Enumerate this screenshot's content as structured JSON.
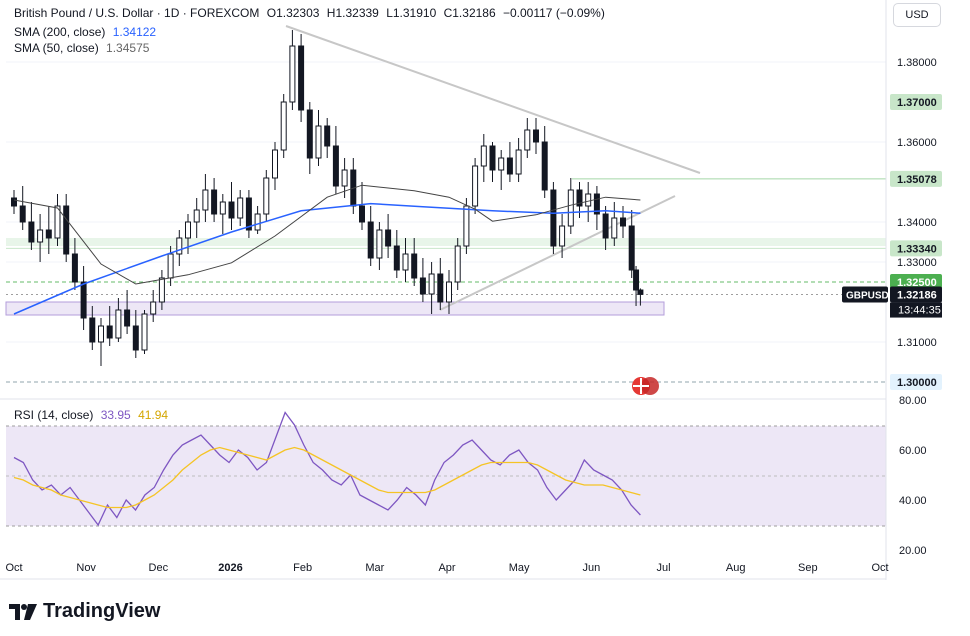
{
  "header": {
    "title": "British Pound / U.S. Dollar · 1D · FOREXCOM",
    "open": "O1.32303",
    "high": "H1.32339",
    "low": "L1.31910",
    "close": "C1.32186",
    "change": "−0.00117 (−0.09%)",
    "currency_button": "USD"
  },
  "legend": {
    "sma200_label": "SMA (200, close)",
    "sma200_value": "1.34122",
    "sma50_label": "SMA (50, close)",
    "sma50_value": "1.34575",
    "rsi_label": "RSI (14, close)",
    "rsi_value": "33.95",
    "rsi_ma_value": "41.94"
  },
  "brand": {
    "name": "TradingView"
  },
  "colors": {
    "sma200": "#2962ff",
    "sma50": "#444444",
    "rsi": "#7e57c2",
    "rsi_ma": "#f5c425",
    "level_green": "#a5d6a7",
    "support_zone": "#b39ddb",
    "trendline": "#c7c7c7"
  },
  "chart_data": [
    {
      "type": "candlestick",
      "title": "British Pound / U.S. Dollar · 1D · FOREXCOM",
      "x_ticks": [
        "Oct",
        "Nov",
        "Dec",
        "2026",
        "Feb",
        "Mar",
        "Apr",
        "May",
        "Jun",
        "Jul",
        "Aug",
        "Sep",
        "Oct"
      ],
      "y_ticks": [
        "1.38000",
        "1.36000",
        "1.34000",
        "1.33000",
        "1.31000"
      ],
      "ylim": [
        1.2975,
        1.3905
      ],
      "price_levels": [
        {
          "label": "1.37000",
          "value": 1.37,
          "style": "green-badge"
        },
        {
          "label": "1.35078",
          "value": 1.35078,
          "style": "green-line"
        },
        {
          "label": "1.33340",
          "value": 1.3334,
          "style": "green-zone"
        },
        {
          "label": "1.32500",
          "value": 1.325,
          "style": "green-dashed"
        },
        {
          "label": "1.32186",
          "value": 1.32186,
          "style": "current"
        },
        {
          "label": "1.30000",
          "value": 1.3,
          "style": "blue-dashed"
        }
      ],
      "current": {
        "symbol": "GBPUSD",
        "price": "1.32186",
        "countdown": "13:44:35"
      },
      "support_zone": [
        1.3164,
        1.3195
      ],
      "series": [
        {
          "name": "SMA (200, close)",
          "points": [
            [
              0,
              1.317
            ],
            [
              0.08,
              1.3245
            ],
            [
              0.17,
              1.3315
            ],
            [
              0.25,
              1.3375
            ],
            [
              0.33,
              1.3428
            ],
            [
              0.41,
              1.3446
            ],
            [
              0.47,
              1.3438
            ],
            [
              0.55,
              1.3428
            ],
            [
              0.62,
              1.3422
            ],
            [
              0.68,
              1.3428
            ],
            [
              0.72,
              1.3422
            ]
          ]
        },
        {
          "name": "SMA (50, close)",
          "points": [
            [
              0,
              1.3455
            ],
            [
              0.05,
              1.3435
            ],
            [
              0.1,
              1.3295
            ],
            [
              0.14,
              1.3245
            ],
            [
              0.2,
              1.3268
            ],
            [
              0.25,
              1.3298
            ],
            [
              0.3,
              1.3365
            ],
            [
              0.36,
              1.3462
            ],
            [
              0.4,
              1.3492
            ],
            [
              0.46,
              1.3478
            ],
            [
              0.5,
              1.3462
            ],
            [
              0.53,
              1.3432
            ],
            [
              0.55,
              1.3402
            ],
            [
              0.6,
              1.3418
            ],
            [
              0.64,
              1.3442
            ],
            [
              0.68,
              1.3462
            ],
            [
              0.72,
              1.3455
            ]
          ]
        }
      ],
      "candles": [
        [
          0.0,
          1.346,
          1.348,
          1.342,
          1.344
        ],
        [
          0.01,
          1.344,
          1.349,
          1.338,
          1.34
        ],
        [
          0.02,
          1.34,
          1.345,
          1.333,
          1.335
        ],
        [
          0.03,
          1.335,
          1.342,
          1.33,
          1.338
        ],
        [
          0.04,
          1.338,
          1.344,
          1.332,
          1.336
        ],
        [
          0.05,
          1.336,
          1.347,
          1.334,
          1.344
        ],
        [
          0.06,
          1.344,
          1.347,
          1.33,
          1.332
        ],
        [
          0.07,
          1.332,
          1.336,
          1.323,
          1.325
        ],
        [
          0.08,
          1.325,
          1.329,
          1.313,
          1.316
        ],
        [
          0.09,
          1.316,
          1.319,
          1.308,
          1.31
        ],
        [
          0.1,
          1.31,
          1.316,
          1.304,
          1.314
        ],
        [
          0.11,
          1.314,
          1.319,
          1.309,
          1.311
        ],
        [
          0.12,
          1.311,
          1.321,
          1.31,
          1.318
        ],
        [
          0.13,
          1.318,
          1.323,
          1.312,
          1.314
        ],
        [
          0.14,
          1.314,
          1.318,
          1.306,
          1.308
        ],
        [
          0.15,
          1.308,
          1.318,
          1.307,
          1.317
        ],
        [
          0.16,
          1.317,
          1.323,
          1.315,
          1.32
        ],
        [
          0.17,
          1.32,
          1.328,
          1.318,
          1.326
        ],
        [
          0.18,
          1.326,
          1.334,
          1.324,
          1.332
        ],
        [
          0.19,
          1.332,
          1.338,
          1.329,
          1.336
        ],
        [
          0.2,
          1.336,
          1.342,
          1.332,
          1.34
        ],
        [
          0.21,
          1.34,
          1.346,
          1.336,
          1.343
        ],
        [
          0.22,
          1.343,
          1.352,
          1.34,
          1.348
        ],
        [
          0.23,
          1.348,
          1.351,
          1.34,
          1.342
        ],
        [
          0.24,
          1.342,
          1.347,
          1.337,
          1.345
        ],
        [
          0.25,
          1.345,
          1.35,
          1.338,
          1.341
        ],
        [
          0.26,
          1.341,
          1.348,
          1.339,
          1.346
        ],
        [
          0.27,
          1.346,
          1.348,
          1.336,
          1.338
        ],
        [
          0.28,
          1.338,
          1.344,
          1.337,
          1.342
        ],
        [
          0.29,
          1.342,
          1.353,
          1.34,
          1.351
        ],
        [
          0.3,
          1.351,
          1.36,
          1.348,
          1.358
        ],
        [
          0.31,
          1.358,
          1.372,
          1.356,
          1.37
        ],
        [
          0.32,
          1.37,
          1.388,
          1.368,
          1.384
        ],
        [
          0.33,
          1.384,
          1.387,
          1.365,
          1.368
        ],
        [
          0.34,
          1.368,
          1.37,
          1.352,
          1.356
        ],
        [
          0.35,
          1.356,
          1.368,
          1.354,
          1.364
        ],
        [
          0.36,
          1.364,
          1.366,
          1.356,
          1.359
        ],
        [
          0.37,
          1.359,
          1.364,
          1.347,
          1.349
        ],
        [
          0.38,
          1.349,
          1.356,
          1.346,
          1.353
        ],
        [
          0.39,
          1.353,
          1.356,
          1.342,
          1.344
        ],
        [
          0.4,
          1.344,
          1.35,
          1.338,
          1.34
        ],
        [
          0.41,
          1.34,
          1.344,
          1.329,
          1.331
        ],
        [
          0.42,
          1.331,
          1.34,
          1.328,
          1.338
        ],
        [
          0.43,
          1.338,
          1.342,
          1.331,
          1.334
        ],
        [
          0.44,
          1.334,
          1.338,
          1.326,
          1.328
        ],
        [
          0.45,
          1.328,
          1.336,
          1.325,
          1.332
        ],
        [
          0.46,
          1.332,
          1.336,
          1.324,
          1.326
        ],
        [
          0.47,
          1.326,
          1.331,
          1.32,
          1.322
        ],
        [
          0.48,
          1.322,
          1.33,
          1.317,
          1.327
        ],
        [
          0.49,
          1.327,
          1.331,
          1.318,
          1.32
        ],
        [
          0.5,
          1.32,
          1.328,
          1.317,
          1.325
        ],
        [
          0.51,
          1.325,
          1.336,
          1.323,
          1.334
        ],
        [
          0.52,
          1.334,
          1.346,
          1.332,
          1.344
        ],
        [
          0.53,
          1.344,
          1.356,
          1.342,
          1.354
        ],
        [
          0.54,
          1.354,
          1.362,
          1.35,
          1.359
        ],
        [
          0.55,
          1.359,
          1.36,
          1.35,
          1.353
        ],
        [
          0.56,
          1.353,
          1.358,
          1.348,
          1.356
        ],
        [
          0.57,
          1.356,
          1.36,
          1.35,
          1.352
        ],
        [
          0.58,
          1.352,
          1.361,
          1.35,
          1.358
        ],
        [
          0.59,
          1.358,
          1.366,
          1.356,
          1.363
        ],
        [
          0.6,
          1.363,
          1.366,
          1.357,
          1.36
        ],
        [
          0.61,
          1.36,
          1.364,
          1.346,
          1.348
        ],
        [
          0.62,
          1.348,
          1.35,
          1.332,
          1.334
        ],
        [
          0.63,
          1.334,
          1.342,
          1.331,
          1.339
        ],
        [
          0.64,
          1.339,
          1.351,
          1.337,
          1.348
        ],
        [
          0.65,
          1.348,
          1.35,
          1.341,
          1.344
        ],
        [
          0.66,
          1.344,
          1.35,
          1.34,
          1.347
        ],
        [
          0.67,
          1.347,
          1.349,
          1.338,
          1.342
        ],
        [
          0.68,
          1.342,
          1.344,
          1.333,
          1.336
        ],
        [
          0.69,
          1.336,
          1.345,
          1.334,
          1.341
        ],
        [
          0.7,
          1.341,
          1.344,
          1.336,
          1.339
        ],
        [
          0.71,
          1.339,
          1.343,
          1.326,
          1.328
        ],
        [
          0.715,
          1.328,
          1.329,
          1.319,
          1.323
        ],
        [
          0.72,
          1.323,
          1.3234,
          1.3191,
          1.3219
        ]
      ]
    },
    {
      "type": "line",
      "title": "RSI (14, close)",
      "y_ticks": [
        "80.00",
        "60.00",
        "40.00",
        "20.00"
      ],
      "ylim": [
        20,
        80
      ],
      "band": [
        30,
        70
      ],
      "series": [
        {
          "name": "RSI (14, close)",
          "values": [
            57,
            55,
            48,
            44,
            46,
            42,
            45,
            40,
            35,
            30,
            38,
            33,
            40,
            36,
            42,
            45,
            52,
            58,
            62,
            64,
            66,
            62,
            58,
            55,
            60,
            57,
            52,
            55,
            65,
            75,
            70,
            62,
            55,
            52,
            48,
            46,
            50,
            42,
            40,
            38,
            36,
            40,
            45,
            42,
            38,
            48,
            55,
            58,
            62,
            64,
            60,
            56,
            54,
            58,
            60,
            55,
            52,
            45,
            40,
            44,
            48,
            56,
            52,
            50,
            48,
            44,
            38,
            34
          ]
        },
        {
          "name": "RSI MA",
          "values": [
            49,
            48,
            46,
            45,
            44,
            42,
            41,
            40,
            39,
            38,
            37,
            37,
            37,
            38,
            40,
            42,
            45,
            48,
            52,
            55,
            58,
            60,
            61,
            60,
            59,
            58,
            57,
            56,
            58,
            60,
            61,
            60,
            58,
            56,
            54,
            52,
            50,
            48,
            46,
            44,
            43,
            43,
            43,
            43,
            43,
            44,
            46,
            48,
            50,
            52,
            54,
            55,
            55,
            55,
            55,
            55,
            54,
            52,
            50,
            48,
            47,
            46,
            46,
            46,
            45,
            44,
            43,
            42
          ]
        }
      ]
    }
  ]
}
